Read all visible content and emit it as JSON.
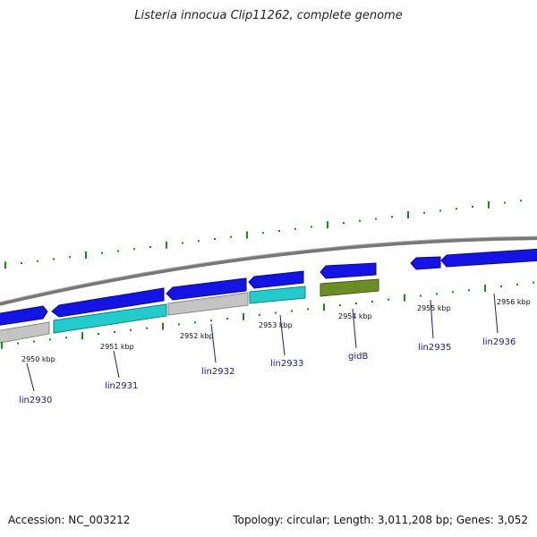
{
  "title": "Listeria innocua Clip11262, complete genome",
  "footer": {
    "accession": "Accession: NC_003212",
    "info": "Topology: circular; Length: 3,011,208 bp; Genes: 3,052"
  },
  "colors": {
    "forward_gene": "#1414e6",
    "rna_gene": "#22cccc",
    "hypothetical": "#bdbdbd",
    "highlight_gene": "#6b8e23",
    "backbone": "#888888",
    "tick": "#1a8a1a",
    "label_line": "#1a1a9a"
  },
  "scale_labels": [
    "2950 kbp",
    "2951 kbp",
    "2952 kbp",
    "2953 kbp",
    "2954 kbp",
    "2955 kbp",
    "2956 kbp"
  ],
  "genes": [
    {
      "name": "lin2930"
    },
    {
      "name": "lin2931"
    },
    {
      "name": "lin2932"
    },
    {
      "name": "lin2933"
    },
    {
      "name": "gidB"
    },
    {
      "name": "lin2935"
    },
    {
      "name": "lin2936"
    }
  ]
}
